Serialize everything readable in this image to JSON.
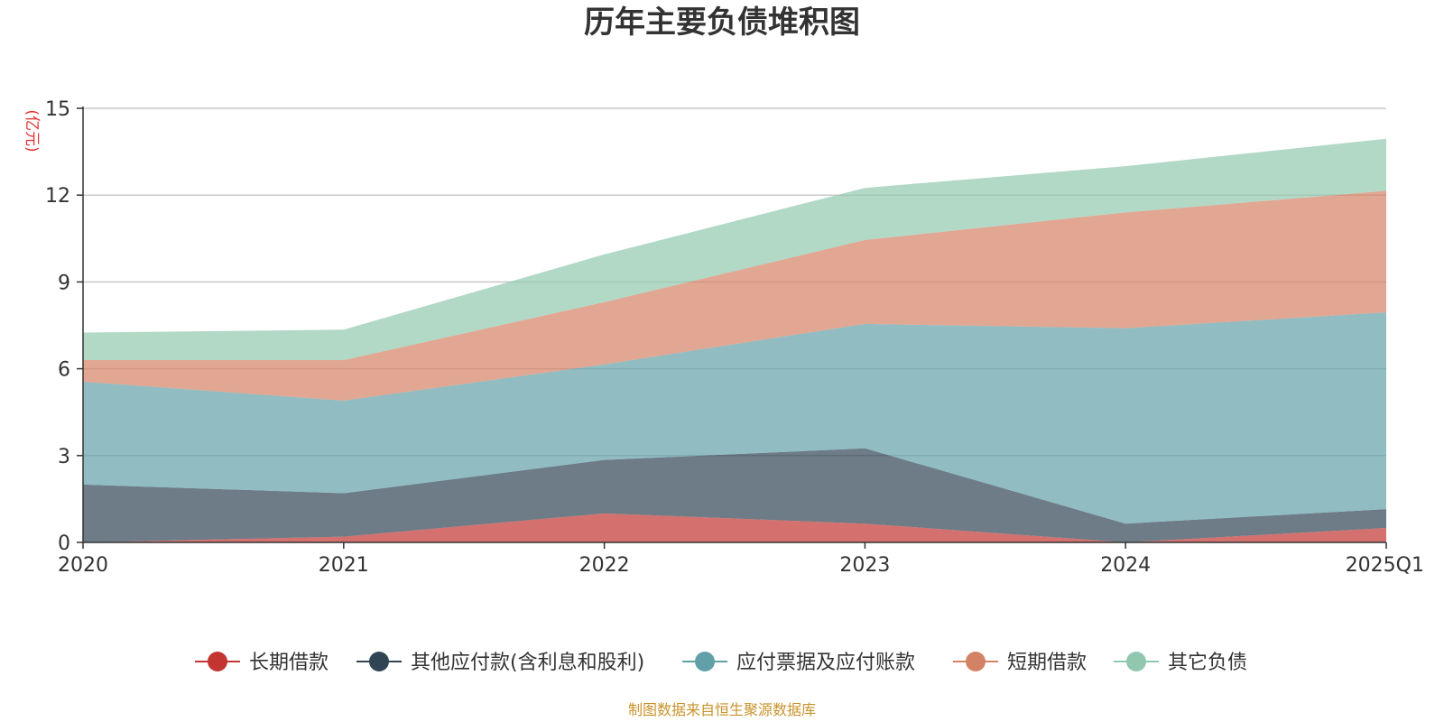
{
  "chart_data": {
    "type": "area",
    "stacked": true,
    "title": "历年主要负债堆积图",
    "unit": "(亿元)",
    "x": [
      "2020",
      "2021",
      "2022",
      "2023",
      "2024",
      "2025Q1"
    ],
    "ylim": [
      0,
      15
    ],
    "yticks": [
      0,
      3,
      6,
      9,
      12,
      15
    ],
    "grid": true,
    "legend_position": "bottom",
    "series": [
      {
        "name": "长期借款",
        "color": "#c23531",
        "values": [
          0.0,
          0.2,
          1.0,
          0.65,
          0.0,
          0.5
        ]
      },
      {
        "name": "其他应付款(含利息和股利)",
        "color": "#2f4554",
        "values": [
          2.0,
          1.5,
          1.85,
          2.6,
          0.65,
          0.65
        ]
      },
      {
        "name": "应付票据及应付账款",
        "color": "#61a0a8",
        "values": [
          3.55,
          3.2,
          3.3,
          4.3,
          6.75,
          6.8
        ]
      },
      {
        "name": "短期借款",
        "color": "#d48265",
        "values": [
          0.75,
          1.4,
          2.15,
          2.9,
          4.0,
          4.2
        ]
      },
      {
        "name": "其它负债",
        "color": "#91c7ae",
        "values": [
          0.95,
          1.05,
          1.65,
          1.8,
          1.6,
          1.8
        ]
      }
    ],
    "source": "制图数据来自恒生聚源数据库"
  }
}
